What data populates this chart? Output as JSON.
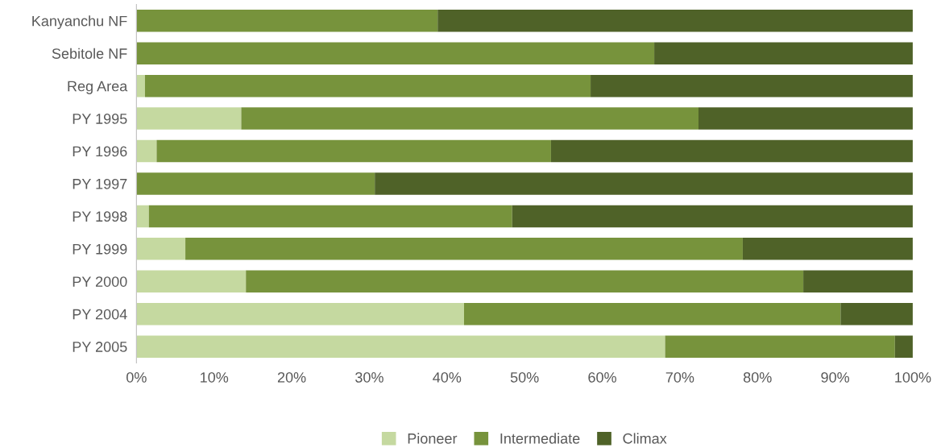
{
  "chart_data": {
    "type": "bar",
    "orientation": "horizontal",
    "stacked": true,
    "categories": [
      "Kanyanchu NF",
      "Sebitole NF",
      "Reg Area",
      "PY 1995",
      "PY 1996",
      "PY 1997",
      "PY 1998",
      "PY 1999",
      "PY 2000",
      "PY 2004",
      "PY 2005"
    ],
    "series": [
      {
        "name": "Pioneer",
        "color": "#c5d9a0",
        "values": [
          0,
          0,
          1.1,
          13.5,
          2.6,
          0,
          1.6,
          6.3,
          14.1,
          42.2,
          68.1
        ]
      },
      {
        "name": "Intermediate",
        "color": "#77933c",
        "values": [
          38.8,
          66.7,
          57.4,
          58.9,
          50.8,
          30.7,
          46.8,
          71.8,
          71.8,
          48.5,
          29.6
        ]
      },
      {
        "name": "Climax",
        "color": "#4f6228",
        "values": [
          61.2,
          33.3,
          41.5,
          27.6,
          46.6,
          69.3,
          51.6,
          21.9,
          14.1,
          9.3,
          2.3
        ]
      }
    ],
    "xlim": [
      0,
      100
    ],
    "xticks": [
      {
        "value": 0,
        "label": "0%"
      },
      {
        "value": 10,
        "label": "10%"
      },
      {
        "value": 20,
        "label": "20%"
      },
      {
        "value": 30,
        "label": "30%"
      },
      {
        "value": 40,
        "label": "40%"
      },
      {
        "value": 50,
        "label": "50%"
      },
      {
        "value": 60,
        "label": "60%"
      },
      {
        "value": 70,
        "label": "70%"
      },
      {
        "value": 80,
        "label": "80%"
      },
      {
        "value": 90,
        "label": "90%"
      },
      {
        "value": 100,
        "label": "100%"
      }
    ],
    "grid": false,
    "legend": "bottom"
  }
}
